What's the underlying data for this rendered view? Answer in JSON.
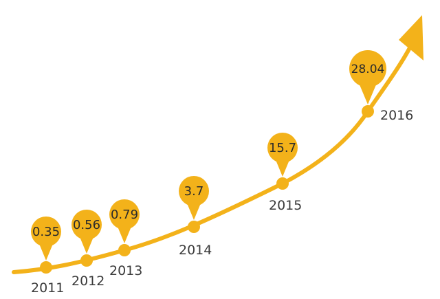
{
  "chart_data": {
    "type": "line",
    "x": [
      "2011",
      "2012",
      "2013",
      "2014",
      "2015",
      "2016"
    ],
    "values": [
      0.35,
      0.56,
      0.79,
      3.7,
      15.7,
      28.04
    ],
    "value_labels": [
      "0.35",
      "0.56",
      "0.79",
      "3.7",
      "15.7",
      "28.04"
    ],
    "color": "#f3b21a"
  }
}
